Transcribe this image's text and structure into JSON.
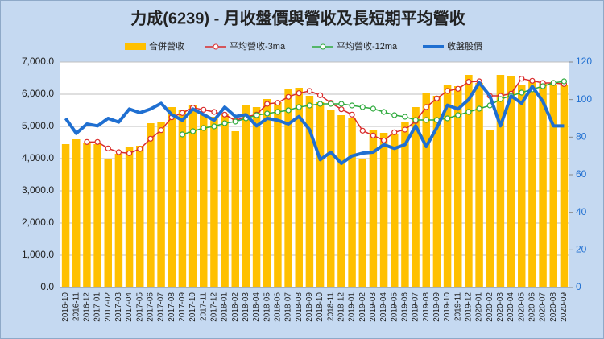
{
  "chart_data": {
    "type": "combo",
    "title": "力成(6239)  - 月收盤價與營收及長短期平均營收",
    "categories": [
      "2016-10",
      "2016-11",
      "2016-12",
      "2017-01",
      "2017-02",
      "2017-03",
      "2017-04",
      "2017-05",
      "2017-06",
      "2017-07",
      "2017-08",
      "2017-09",
      "2017-10",
      "2017-11",
      "2017-12",
      "2018-01",
      "2018-02",
      "2018-03",
      "2018-04",
      "2018-05",
      "2018-06",
      "2018-07",
      "2018-08",
      "2018-09",
      "2018-10",
      "2018-11",
      "2018-12",
      "2019-01",
      "2019-02",
      "2019-03",
      "2019-04",
      "2019-05",
      "2019-06",
      "2019-07",
      "2019-08",
      "2019-09",
      "2019-10",
      "2019-11",
      "2019-12",
      "2020-01",
      "2020-02",
      "2020-03",
      "2020-04",
      "2020-05",
      "2020-06",
      "2020-07",
      "2020-08",
      "2020-09"
    ],
    "series": [
      {
        "name": "合併營收",
        "type": "bar",
        "color": "#ffc000",
        "values": [
          4450,
          4600,
          4500,
          4450,
          4000,
          4150,
          4350,
          4400,
          5100,
          5150,
          5600,
          5500,
          5650,
          5400,
          5300,
          5400,
          4850,
          5650,
          5600,
          5850,
          5750,
          6150,
          6200,
          5950,
          5750,
          5500,
          5350,
          5250,
          4000,
          4900,
          4800,
          4750,
          5150,
          5600,
          6050,
          5950,
          6300,
          6250,
          6600,
          6350,
          4900,
          6600,
          6550,
          6300,
          6400,
          6350,
          6300,
          6300
        ]
      },
      {
        "name": "平均營收-3ma",
        "type": "line",
        "markers": true,
        "color": "#d92b2b",
        "values": [
          null,
          null,
          4517,
          4517,
          4317,
          4200,
          4167,
          4300,
          4617,
          4883,
          5283,
          5417,
          5583,
          5517,
          5450,
          5367,
          5183,
          5300,
          5367,
          5700,
          5733,
          5917,
          6033,
          6100,
          5967,
          5733,
          5533,
          5367,
          4867,
          4717,
          4567,
          4817,
          4900,
          5167,
          5600,
          5867,
          6100,
          6167,
          6383,
          6400,
          5950,
          5950,
          6017,
          6483,
          6417,
          6350,
          6350,
          6317
        ]
      },
      {
        "name": "平均營收-12ma",
        "type": "line",
        "markers": true,
        "color": "#2eaa3c",
        "values": [
          null,
          null,
          null,
          null,
          null,
          null,
          null,
          null,
          null,
          null,
          null,
          4750,
          4850,
          4950,
          5000,
          5100,
          5150,
          5250,
          5350,
          5400,
          5450,
          5500,
          5600,
          5650,
          5700,
          5700,
          5700,
          5650,
          5600,
          5550,
          5450,
          5350,
          5300,
          5200,
          5200,
          5200,
          5250,
          5350,
          5450,
          5550,
          5650,
          5850,
          5950,
          6050,
          6150,
          6250,
          6350,
          6400
        ]
      },
      {
        "name": "收盤股價",
        "type": "line",
        "markers": false,
        "axis": "y2",
        "color": "#1f6fd1",
        "values": [
          90,
          82,
          87,
          86,
          90,
          88,
          95,
          93,
          95,
          98,
          92,
          89,
          95,
          92,
          89,
          96,
          91,
          92,
          86,
          90,
          89,
          87,
          91,
          84,
          68,
          72,
          66,
          70,
          71.5,
          72,
          76,
          74,
          76,
          86,
          75,
          85,
          97,
          95,
          100,
          109,
          102,
          86,
          102,
          98,
          107,
          99,
          86,
          86
        ]
      }
    ],
    "ylim": [
      0,
      7000
    ],
    "yticks": [
      {
        "value": 0,
        "label": "0.0"
      },
      {
        "value": 1000,
        "label": "1,000.0"
      },
      {
        "value": 2000,
        "label": "2,000.0"
      },
      {
        "value": 3000,
        "label": "3,000.0"
      },
      {
        "value": 4000,
        "label": "4,000.0"
      },
      {
        "value": 5000,
        "label": "5,000.0"
      },
      {
        "value": 6000,
        "label": "6,000.0"
      },
      {
        "value": 7000,
        "label": "7,000.0"
      }
    ],
    "y2lim": [
      0,
      120
    ],
    "y2ticks": [
      0,
      20,
      40,
      60,
      80,
      100,
      120
    ],
    "grid": true
  }
}
